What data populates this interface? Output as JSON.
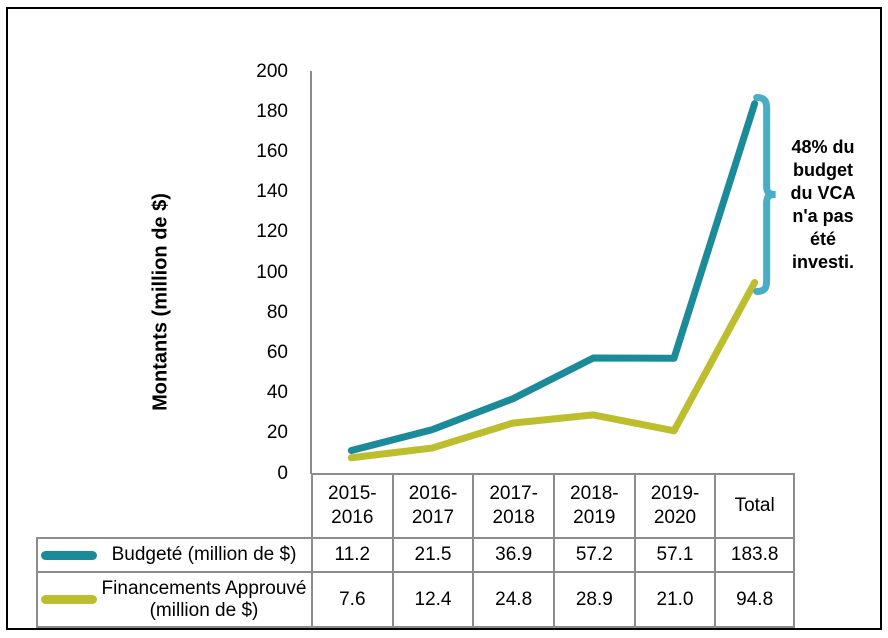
{
  "figure": {
    "ylabel": "Montants (million de $)"
  },
  "annotation_box": {
    "text": "48% du\nbudget\ndu VCA\nn'a pas\nété\ninvesti.",
    "bracket_color": "#4BACC6"
  },
  "chart_data": {
    "type": "line",
    "title": "",
    "xlabel": "",
    "ylabel": "Montants (million de $)",
    "ylim": [
      0,
      200
    ],
    "ytick_step": 20,
    "grid": false,
    "legend_position": "table-left",
    "categories": [
      "2015-2016",
      "2016-2017",
      "2017-2018",
      "2018-2019",
      "2019-2020",
      "Total"
    ],
    "series": [
      {
        "name": "Budgeté (million de $)",
        "color": "#1B8A99",
        "values": [
          11.2,
          21.5,
          36.9,
          57.2,
          57.1,
          183.8
        ]
      },
      {
        "name": "Financements Approuvé (million de $)",
        "color": "#BDBE2D",
        "values": [
          7.6,
          12.4,
          24.8,
          28.9,
          21.0,
          94.8
        ]
      }
    ],
    "annotation": "48% du budget du VCA n'a pas été investi."
  },
  "table": {
    "col_headers": [
      "2015-\n2016",
      "2016-\n2017",
      "2017-\n2018",
      "2018-\n2019",
      "2019-\n2020",
      "Total"
    ],
    "rows": [
      {
        "label": "Budgeté (million de $)",
        "swatch_color": "#1B8A99",
        "values": [
          "11.2",
          "21.5",
          "36.9",
          "57.2",
          "57.1",
          "183.8"
        ]
      },
      {
        "label": "Financements Approuvé (million de $)",
        "swatch_color": "#BDBE2D",
        "values": [
          "7.6",
          "12.4",
          "24.8",
          "28.9",
          "21.0",
          "94.8"
        ]
      }
    ]
  },
  "colors": {
    "axis": "#8C8C8C",
    "table_border": "#8C8C8C",
    "frame": "#000000",
    "background": "#FFFFFF"
  }
}
